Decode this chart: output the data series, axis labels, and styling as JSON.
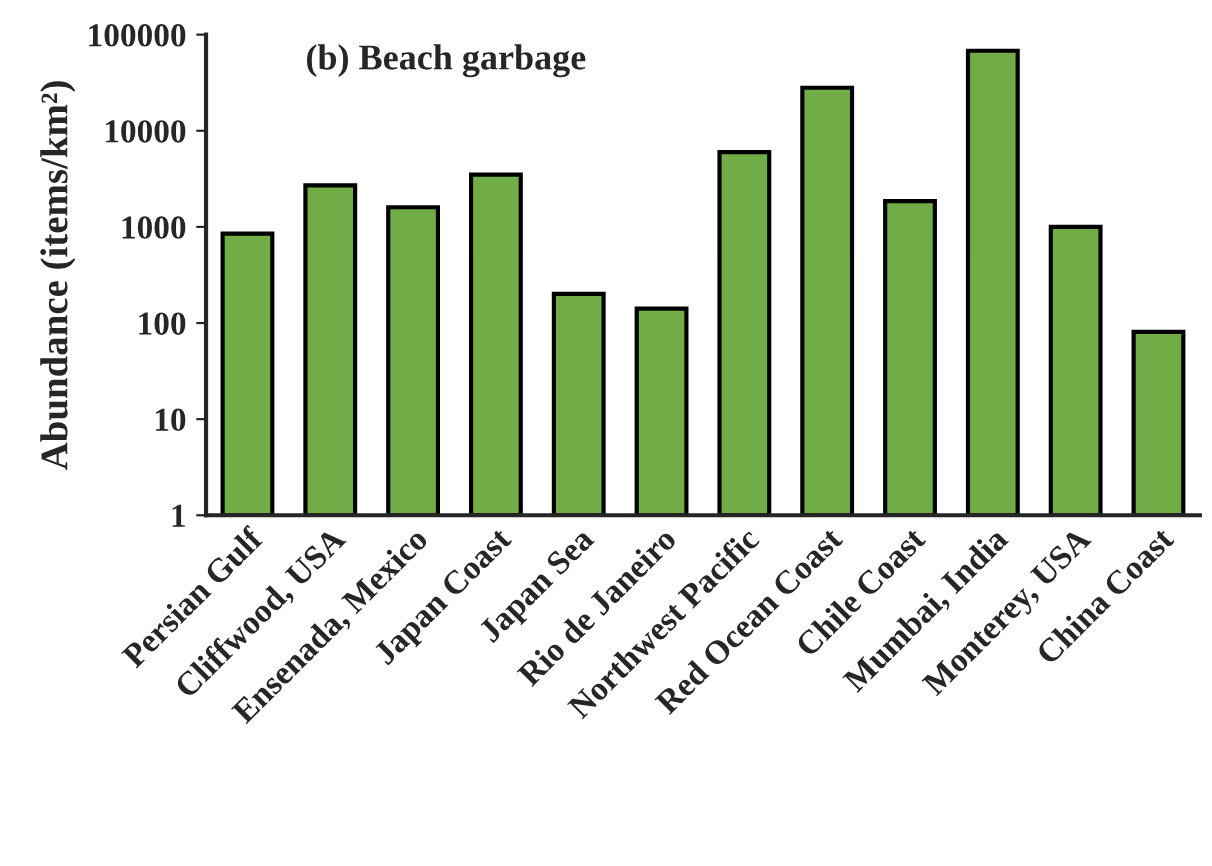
{
  "chart_data": {
    "type": "bar",
    "title": "(b) Beach garbage",
    "ylabel": "Abundance (items/km²)",
    "categories": [
      "Persian Gulf",
      "Cliffwood, USA",
      "Ensenada, Mexico",
      "Japan Coast",
      "Japan Sea",
      "Rio de Janeiro",
      "Northwest Pacific",
      "Red Ocean Coast",
      "Chile Coast",
      "Mumbai, India",
      "Monterey, USA",
      "China Coast"
    ],
    "values": [
      850,
      2700,
      1600,
      3500,
      200,
      140,
      6000,
      28000,
      1850,
      68000,
      1000,
      80
    ],
    "color": "#70ad47",
    "log": "y",
    "ylim": [
      1,
      100000
    ],
    "yticks": [
      1,
      10,
      100,
      1000,
      10000,
      100000
    ],
    "grid": false,
    "legend": false
  }
}
